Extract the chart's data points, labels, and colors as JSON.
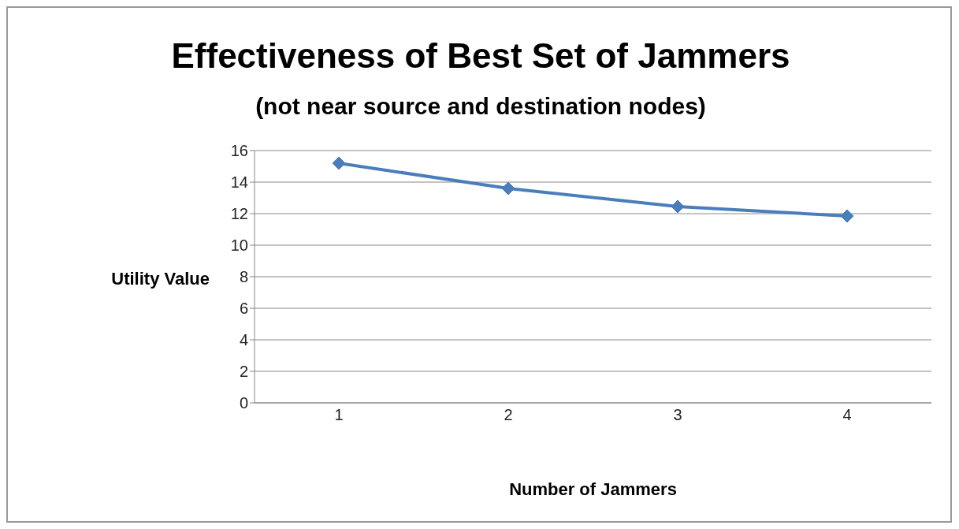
{
  "chart_data": {
    "type": "line",
    "title": "Effectiveness of Best Set of Jammers",
    "subtitle": "(not near source and destination nodes)",
    "xlabel": "Number of Jammers",
    "ylabel": "Utility Value",
    "categories": [
      "1",
      "2",
      "3",
      "4"
    ],
    "series": [
      {
        "color": "#4a7ebb",
        "values": [
          15.2,
          13.6,
          12.45,
          11.85
        ]
      }
    ],
    "ylim": [
      0,
      16
    ],
    "yticks": [
      0,
      2,
      4,
      6,
      8,
      10,
      12,
      14,
      16
    ],
    "grid": "y",
    "marker": "diamond",
    "line_style": "solid"
  }
}
